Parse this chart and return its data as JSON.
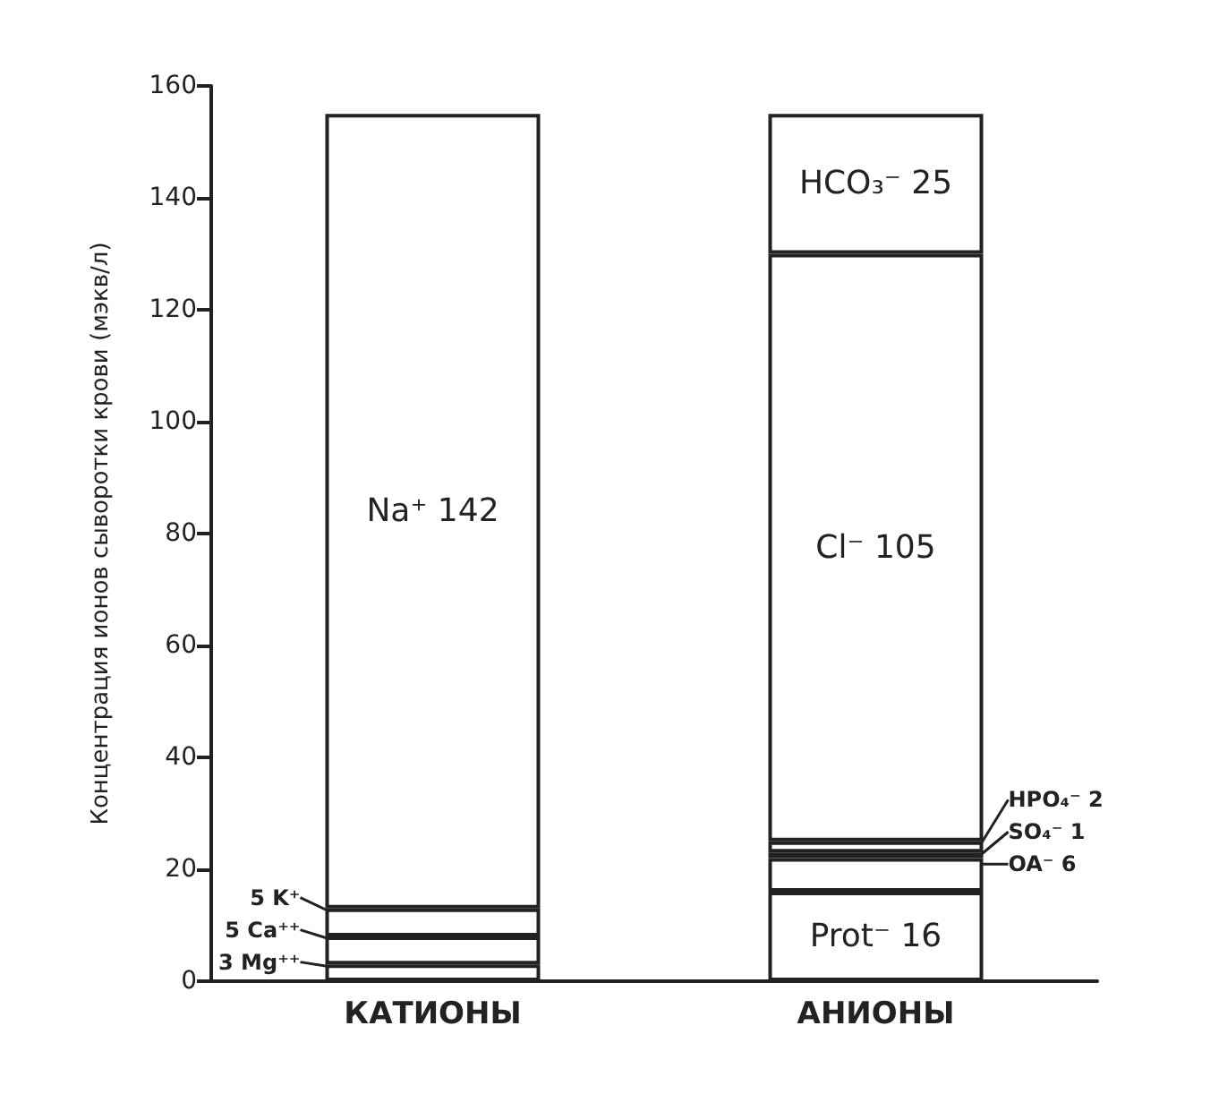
{
  "chart_data": {
    "type": "bar",
    "stacked": true,
    "ylabel": "Концентрация ионов сыворотки крови (мэкв/л)",
    "categories": [
      "КАТИОНЫ",
      "АНИОНЫ"
    ],
    "ylim": [
      0,
      160
    ],
    "yticks": [
      0,
      20,
      40,
      60,
      80,
      100,
      120,
      140,
      160
    ],
    "grid": false,
    "series": [
      {
        "color": "#ffffff",
        "values": [
          3,
          16
        ],
        "value_labels": [
          "3 Mg⁺⁺",
          "Prot⁻ 16"
        ]
      },
      {
        "color": "#ffffff",
        "values": [
          5,
          6
        ],
        "value_labels": [
          "5 Ca⁺⁺",
          "OA⁻ 6"
        ]
      },
      {
        "color": "#ffffff",
        "values": [
          5,
          1
        ],
        "value_labels": [
          "5 K⁺",
          "SO₄⁻ 1"
        ]
      },
      {
        "color": "#ffffff",
        "values": [
          142,
          2
        ],
        "value_labels": [
          "Na⁺ 142",
          "HPO₄⁻ 2"
        ]
      },
      {
        "color": "#ffffff",
        "values": [
          null,
          105
        ],
        "value_labels": [
          null,
          "Cl⁻ 105"
        ]
      },
      {
        "color": "#ffffff",
        "values": [
          null,
          25
        ],
        "value_labels": [
          null,
          "HCO₃⁻ 25"
        ]
      }
    ]
  }
}
